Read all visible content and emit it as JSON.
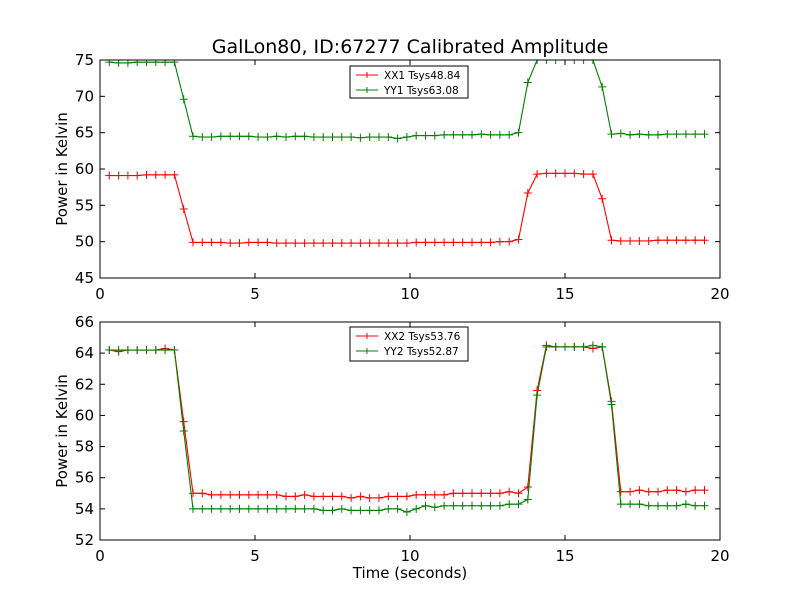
{
  "title": "GalLon80, ID:67277 Calibrated Amplitude",
  "colors": {
    "red": "#ff0000",
    "green": "#008000",
    "axes": "#000000",
    "background": "#ffffff"
  },
  "chart_data": [
    {
      "type": "line",
      "title": "GalLon80, ID:67277 Calibrated Amplitude",
      "xlabel": "",
      "ylabel": "Power in Kelvin",
      "xlim": [
        0,
        20
      ],
      "ylim": [
        45,
        75
      ],
      "xticks": [
        0,
        5,
        10,
        15,
        20
      ],
      "yticks": [
        45,
        50,
        55,
        60,
        65,
        70,
        75
      ],
      "grid": false,
      "legend_position": "top-center",
      "marker": "+",
      "x": [
        0.3,
        0.6,
        0.9,
        1.2,
        1.5,
        1.8,
        2.1,
        2.4,
        2.7,
        3.0,
        3.3,
        3.6,
        3.9,
        4.2,
        4.5,
        4.8,
        5.1,
        5.4,
        5.7,
        6.0,
        6.3,
        6.6,
        6.9,
        7.2,
        7.5,
        7.8,
        8.1,
        8.4,
        8.7,
        9.0,
        9.3,
        9.6,
        9.9,
        10.2,
        10.5,
        10.8,
        11.1,
        11.4,
        11.7,
        12.0,
        12.3,
        12.6,
        12.9,
        13.2,
        13.5,
        13.8,
        14.1,
        14.4,
        14.7,
        15.0,
        15.3,
        15.6,
        15.9,
        16.2,
        16.5,
        16.8,
        17.1,
        17.4,
        17.7,
        18.0,
        18.3,
        18.6,
        18.9,
        19.2,
        19.5
      ],
      "series": [
        {
          "name": "XX1 Tsys48.84",
          "color": "#ff0000",
          "values": [
            59.1,
            59.1,
            59.1,
            59.1,
            59.2,
            59.2,
            59.2,
            59.2,
            54.5,
            49.9,
            49.9,
            49.9,
            49.9,
            49.8,
            49.8,
            49.9,
            49.9,
            49.9,
            49.8,
            49.8,
            49.8,
            49.8,
            49.8,
            49.8,
            49.8,
            49.8,
            49.8,
            49.8,
            49.8,
            49.8,
            49.8,
            49.8,
            49.8,
            49.9,
            49.9,
            49.9,
            49.9,
            49.9,
            49.9,
            49.9,
            49.9,
            49.9,
            50.0,
            50.0,
            50.3,
            56.7,
            59.3,
            59.4,
            59.4,
            59.4,
            59.4,
            59.3,
            59.3,
            55.9,
            50.2,
            50.1,
            50.1,
            50.1,
            50.1,
            50.2,
            50.2,
            50.2,
            50.2,
            50.2,
            50.2
          ]
        },
        {
          "name": "YY1 Tsys63.08",
          "color": "#008000",
          "values": [
            74.7,
            74.6,
            74.6,
            74.7,
            74.7,
            74.7,
            74.7,
            74.7,
            69.6,
            64.5,
            64.4,
            64.4,
            64.5,
            64.5,
            64.5,
            64.5,
            64.4,
            64.4,
            64.5,
            64.4,
            64.5,
            64.5,
            64.4,
            64.4,
            64.4,
            64.4,
            64.4,
            64.3,
            64.4,
            64.4,
            64.4,
            64.2,
            64.4,
            64.6,
            64.6,
            64.6,
            64.7,
            64.7,
            64.7,
            64.7,
            64.8,
            64.7,
            64.7,
            64.7,
            65.0,
            71.9,
            75.0,
            75.0,
            75.0,
            75.0,
            75.0,
            75.0,
            75.0,
            71.3,
            64.8,
            64.9,
            64.7,
            64.8,
            64.7,
            64.7,
            64.8,
            64.8,
            64.8,
            64.8,
            64.8
          ]
        }
      ]
    },
    {
      "type": "line",
      "title": "",
      "xlabel": "Time (seconds)",
      "ylabel": "Power in Kelvin",
      "xlim": [
        0,
        20
      ],
      "ylim": [
        52,
        66
      ],
      "xticks": [
        0,
        5,
        10,
        15,
        20
      ],
      "yticks": [
        52,
        54,
        56,
        58,
        60,
        62,
        64,
        66
      ],
      "grid": false,
      "legend_position": "top-center",
      "marker": "+",
      "x": [
        0.3,
        0.6,
        0.9,
        1.2,
        1.5,
        1.8,
        2.1,
        2.4,
        2.7,
        3.0,
        3.3,
        3.6,
        3.9,
        4.2,
        4.5,
        4.8,
        5.1,
        5.4,
        5.7,
        6.0,
        6.3,
        6.6,
        6.9,
        7.2,
        7.5,
        7.8,
        8.1,
        8.4,
        8.7,
        9.0,
        9.3,
        9.6,
        9.9,
        10.2,
        10.5,
        10.8,
        11.1,
        11.4,
        11.7,
        12.0,
        12.3,
        12.6,
        12.9,
        13.2,
        13.5,
        13.8,
        14.1,
        14.4,
        14.7,
        15.0,
        15.3,
        15.6,
        15.9,
        16.2,
        16.5,
        16.8,
        17.1,
        17.4,
        17.7,
        18.0,
        18.3,
        18.6,
        18.9,
        19.2,
        19.5
      ],
      "series": [
        {
          "name": "XX2 Tsys53.76",
          "color": "#ff0000",
          "values": [
            64.2,
            64.1,
            64.2,
            64.2,
            64.2,
            64.2,
            64.3,
            64.2,
            59.6,
            55.0,
            55.0,
            54.9,
            54.9,
            54.9,
            54.9,
            54.9,
            54.9,
            54.9,
            54.9,
            54.8,
            54.8,
            54.9,
            54.8,
            54.8,
            54.8,
            54.8,
            54.7,
            54.8,
            54.7,
            54.7,
            54.8,
            54.8,
            54.8,
            54.9,
            54.9,
            54.9,
            54.9,
            55.0,
            55.0,
            55.0,
            55.0,
            55.0,
            55.0,
            55.1,
            55.0,
            55.4,
            61.6,
            64.5,
            64.4,
            64.4,
            64.4,
            64.4,
            64.3,
            64.4,
            60.9,
            55.1,
            55.1,
            55.2,
            55.1,
            55.1,
            55.2,
            55.2,
            55.1,
            55.2,
            55.2
          ]
        },
        {
          "name": "YY2 Tsys52.87",
          "color": "#008000",
          "values": [
            64.2,
            64.2,
            64.2,
            64.2,
            64.2,
            64.2,
            64.2,
            64.2,
            59.0,
            54.0,
            54.0,
            54.0,
            54.0,
            54.0,
            54.0,
            54.0,
            54.0,
            54.0,
            54.0,
            54.0,
            54.0,
            54.0,
            54.0,
            53.9,
            53.9,
            54.0,
            53.9,
            53.9,
            53.9,
            53.9,
            54.0,
            54.0,
            53.8,
            54.0,
            54.2,
            54.1,
            54.2,
            54.2,
            54.2,
            54.2,
            54.2,
            54.2,
            54.2,
            54.3,
            54.3,
            54.6,
            61.3,
            64.4,
            64.4,
            64.4,
            64.4,
            64.4,
            64.5,
            64.4,
            60.7,
            54.3,
            54.3,
            54.3,
            54.2,
            54.2,
            54.2,
            54.2,
            54.3,
            54.2,
            54.2
          ]
        }
      ]
    }
  ]
}
